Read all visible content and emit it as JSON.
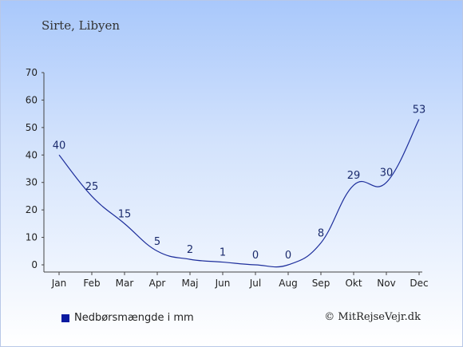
{
  "colors": {
    "line": "#1e2f9c",
    "legend_swatch": "#0a1aa0",
    "axis": "#444444"
  },
  "copyright": "© MitRejseVejr.dk",
  "chart_data": {
    "type": "line",
    "title": "Sirte, Libyen",
    "xlabel": "",
    "ylabel": "",
    "categories": [
      "Jan",
      "Feb",
      "Mar",
      "Apr",
      "Maj",
      "Jun",
      "Jul",
      "Aug",
      "Sep",
      "Okt",
      "Nov",
      "Dec"
    ],
    "series": [
      {
        "name": "Nedbørsmængde i mm",
        "values": [
          40,
          25,
          15,
          5,
          2,
          1,
          0,
          0,
          8,
          29,
          30,
          53
        ]
      }
    ],
    "ylim": [
      0,
      70
    ],
    "yticks": [
      0,
      10,
      20,
      30,
      40,
      50,
      60,
      70
    ],
    "grid": false,
    "legend_position": "bottom-left"
  }
}
